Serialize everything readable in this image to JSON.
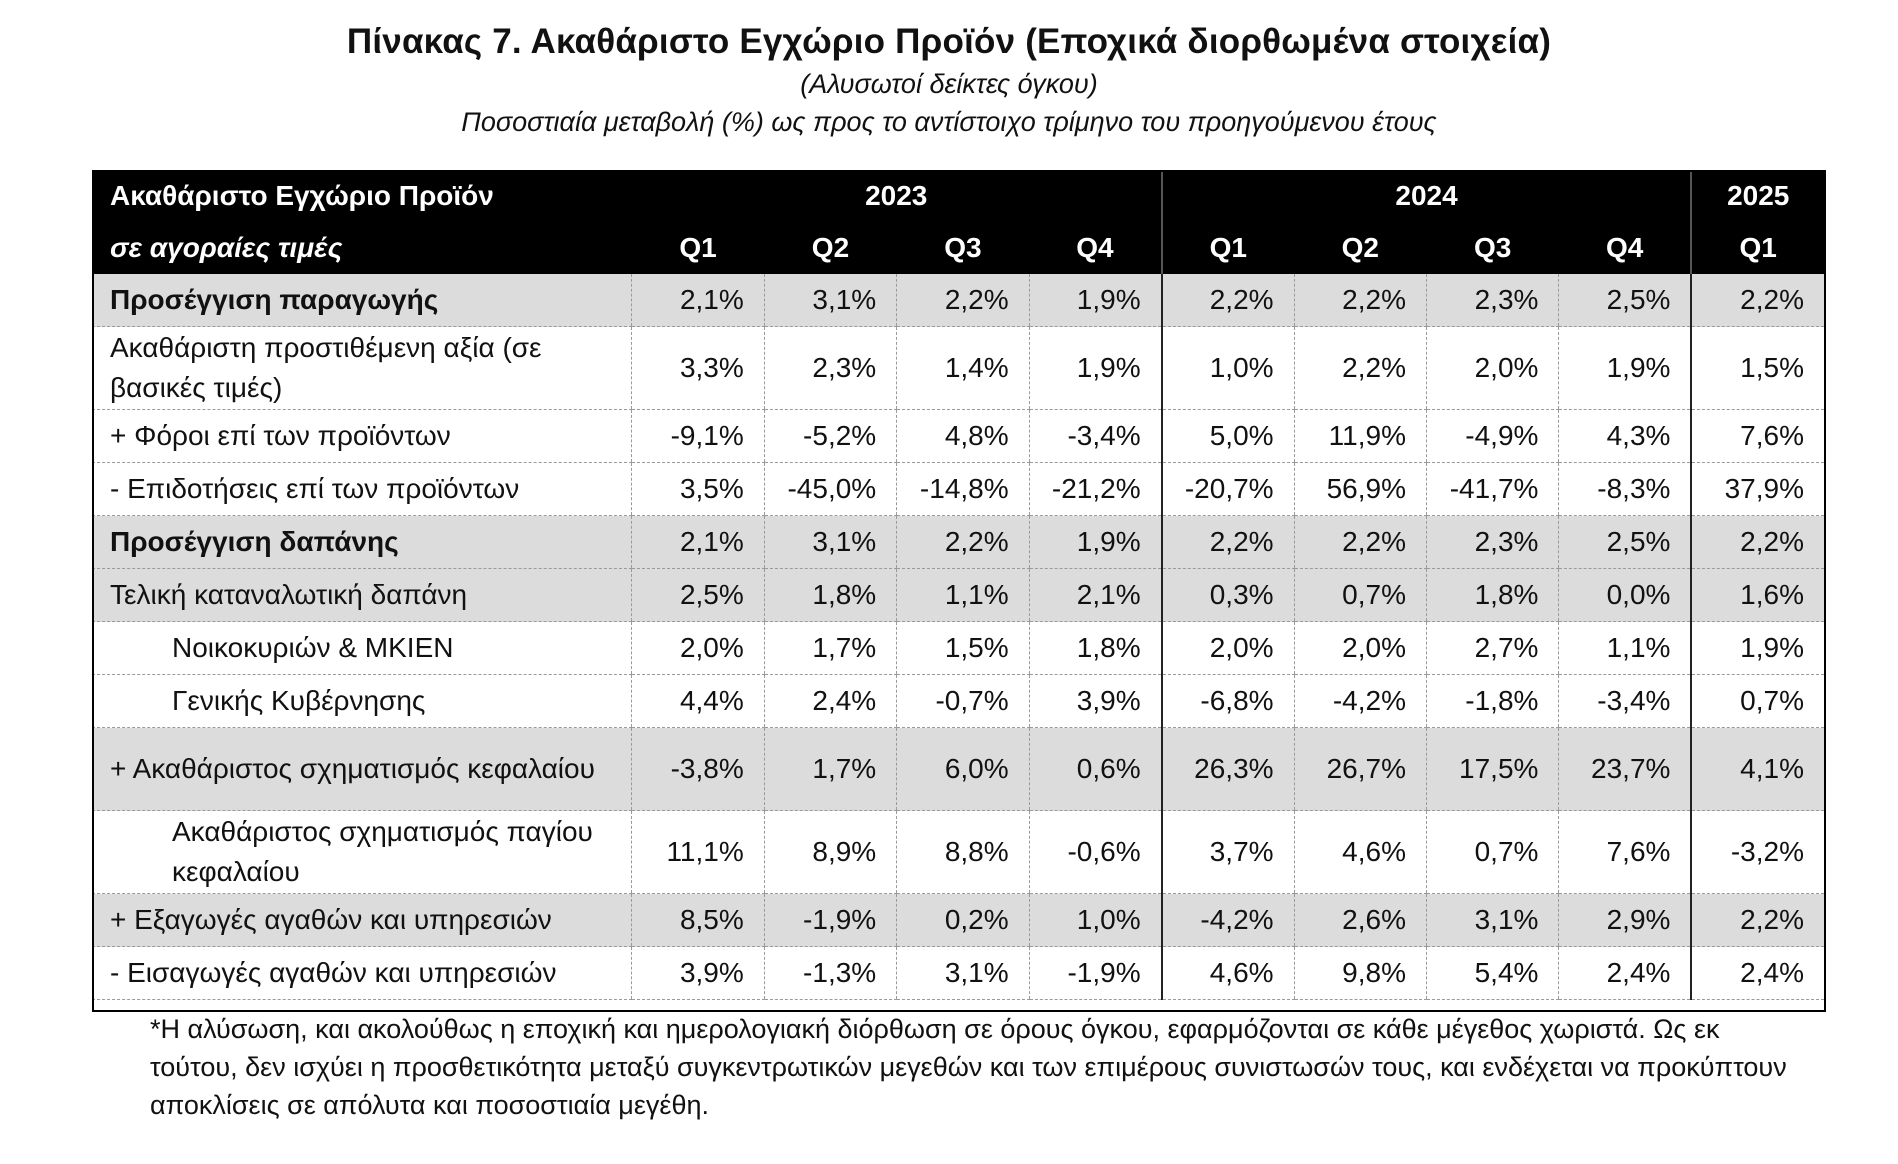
{
  "title": "Πίνακας 7. Ακαθάριστο Εγχώριο Προϊόν (Εποχικά διορθωμένα στοιχεία)",
  "subtitle1": "(Αλυσωτοί δείκτες όγκου)",
  "subtitle2": "Ποσοστιαία μεταβολή (%) ως προς το αντίστοιχο τρίμηνο του προηγούμενου έτους",
  "header": {
    "label_line1": "Ακαθάριστο Εγχώριο Προϊόν",
    "label_line2": "σε αγοραίες τιμές",
    "years": [
      "2023",
      "2024",
      "2025"
    ],
    "quarters": [
      "Q1",
      "Q2",
      "Q3",
      "Q4",
      "Q1",
      "Q2",
      "Q3",
      "Q4",
      "Q1"
    ]
  },
  "rows": [
    {
      "label": "Προσέγγιση παραγωγής",
      "values": [
        "2,1%",
        "3,1%",
        "2,2%",
        "1,9%",
        "2,2%",
        "2,2%",
        "2,3%",
        "2,5%",
        "2,2%"
      ]
    },
    {
      "label": "Ακαθάριστη προστιθέμενη αξία (σε βασικές τιμές)",
      "values": [
        "3,3%",
        "2,3%",
        "1,4%",
        "1,9%",
        "1,0%",
        "2,2%",
        "2,0%",
        "1,9%",
        "1,5%"
      ]
    },
    {
      "label": "+  Φόροι επί των προϊόντων",
      "values": [
        "-9,1%",
        "-5,2%",
        "4,8%",
        "-3,4%",
        "5,0%",
        "11,9%",
        "-4,9%",
        "4,3%",
        "7,6%"
      ]
    },
    {
      "label": "-   Επιδοτήσεις επί των προϊόντων",
      "values": [
        "3,5%",
        "-45,0%",
        "-14,8%",
        "-21,2%",
        "-20,7%",
        "56,9%",
        "-41,7%",
        "-8,3%",
        "37,9%"
      ]
    },
    {
      "label": "Προσέγγιση δαπάνης",
      "values": [
        "2,1%",
        "3,1%",
        "2,2%",
        "1,9%",
        "2,2%",
        "2,2%",
        "2,3%",
        "2,5%",
        "2,2%"
      ]
    },
    {
      "label": "Τελική καταναλωτική δαπάνη",
      "values": [
        "2,5%",
        "1,8%",
        "1,1%",
        "2,1%",
        "0,3%",
        "0,7%",
        "1,8%",
        "0,0%",
        "1,6%"
      ]
    },
    {
      "label": "Νοικοκυριών & ΜΚΙΕΝ",
      "values": [
        "2,0%",
        "1,7%",
        "1,5%",
        "1,8%",
        "2,0%",
        "2,0%",
        "2,7%",
        "1,1%",
        "1,9%"
      ]
    },
    {
      "label": "Γενικής Κυβέρνησης",
      "values": [
        "4,4%",
        "2,4%",
        "-0,7%",
        "3,9%",
        "-6,8%",
        "-4,2%",
        "-1,8%",
        "-3,4%",
        "0,7%"
      ]
    },
    {
      "label": "+ Ακαθάριστος σχηματισμός κεφαλαίου",
      "values": [
        "-3,8%",
        "1,7%",
        "6,0%",
        "0,6%",
        "26,3%",
        "26,7%",
        "17,5%",
        "23,7%",
        "4,1%"
      ]
    },
    {
      "label": "Ακαθάριστος σχηματισμός παγίου κεφαλαίου",
      "values": [
        "11,1%",
        "8,9%",
        "8,8%",
        "-0,6%",
        "3,7%",
        "4,6%",
        "0,7%",
        "7,6%",
        "-3,2%"
      ]
    },
    {
      "label": "+ Εξαγωγές αγαθών και υπηρεσιών",
      "values": [
        "8,5%",
        "-1,9%",
        "0,2%",
        "1,0%",
        "-4,2%",
        "2,6%",
        "3,1%",
        "2,9%",
        "2,2%"
      ]
    },
    {
      "label": "-  Εισαγωγές αγαθών και υπηρεσιών",
      "values": [
        "3,9%",
        "-1,3%",
        "3,1%",
        "-1,9%",
        "4,6%",
        "9,8%",
        "5,4%",
        "2,4%",
        "2,4%"
      ]
    }
  ],
  "footnote": "*Η αλύσωση, και ακολούθως η εποχική και ημερολογιακή διόρθωση σε όρους όγκου, εφαρμόζονται σε κάθε μέγεθος χωριστά. Ως εκ τούτου, δεν ισχύει η προσθετικότητα μεταξύ συγκεντρωτικών μεγεθών και των επιμέρους συνιστωσών τους, και ενδέχεται να προκύπτουν  αποκλίσεις σε απόλυτα και ποσοστιαία μεγέθη."
}
